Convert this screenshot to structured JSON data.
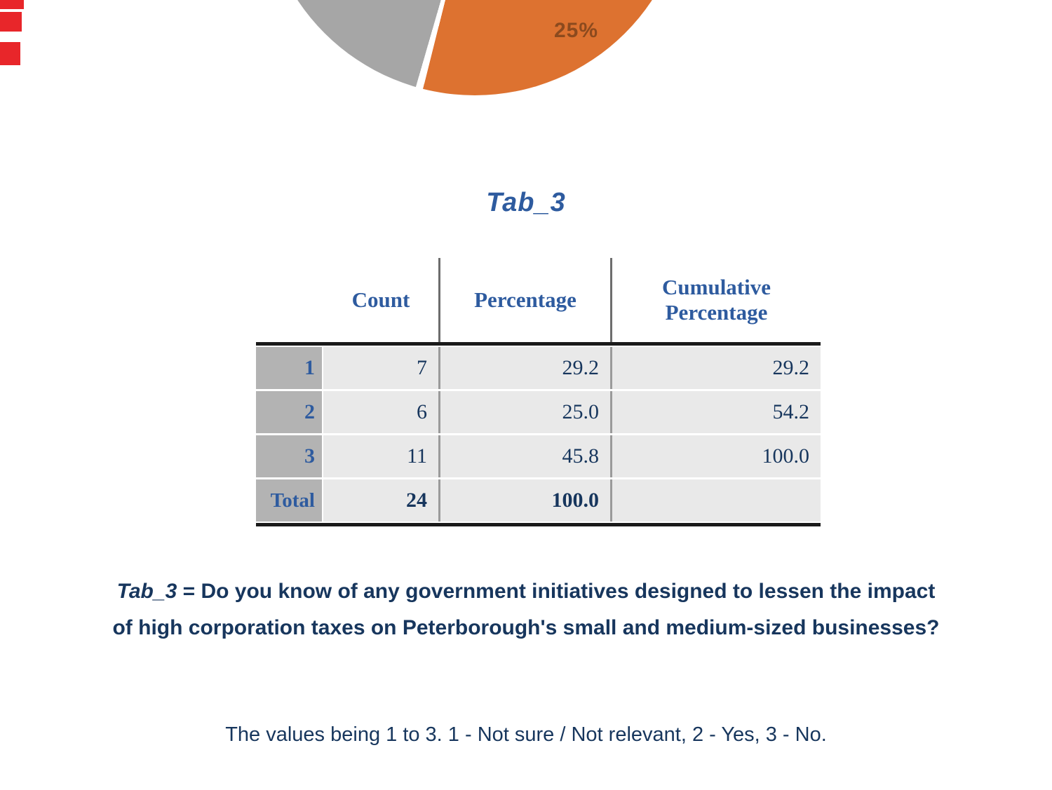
{
  "page": {
    "section_title": "Tab_3",
    "edge_marker_color": "#e8262a"
  },
  "chart_data": {
    "type": "pie",
    "title": "Tab_3",
    "labels": [
      "1 - Not sure / Not relevant",
      "2 - Yes",
      "3 - No"
    ],
    "values": [
      29.2,
      25.0,
      45.8
    ],
    "colors": [
      "#4472a8",
      "#dd7230",
      "#a6a6a6"
    ],
    "visible_label": "25%",
    "visible_label_color": "#8c4a1e",
    "note": "pie is cropped by top edge of page; only orange (25%) and gray slices visible"
  },
  "table": {
    "columns": [
      "",
      "Count",
      "Percentage",
      "Cumulative Percentage"
    ],
    "rows": [
      {
        "label": "1",
        "count": "7",
        "pct": "29.2",
        "cum": "29.2"
      },
      {
        "label": "2",
        "count": "6",
        "pct": "25.0",
        "cum": "54.2"
      },
      {
        "label": "3",
        "count": "11",
        "pct": "45.8",
        "cum": "100.0"
      },
      {
        "label": "Total",
        "count": "24",
        "pct": "100.0",
        "cum": ""
      }
    ]
  },
  "caption": {
    "tab_ref": "Tab_3",
    "text": "= Do you know of any government initiatives designed to lessen the impact of high corporation taxes on Peterborough's small and medium-sized businesses?"
  },
  "footnote": "The values being 1 to 3. 1 - Not sure / Not relevant, 2 - Yes, 3 - No."
}
